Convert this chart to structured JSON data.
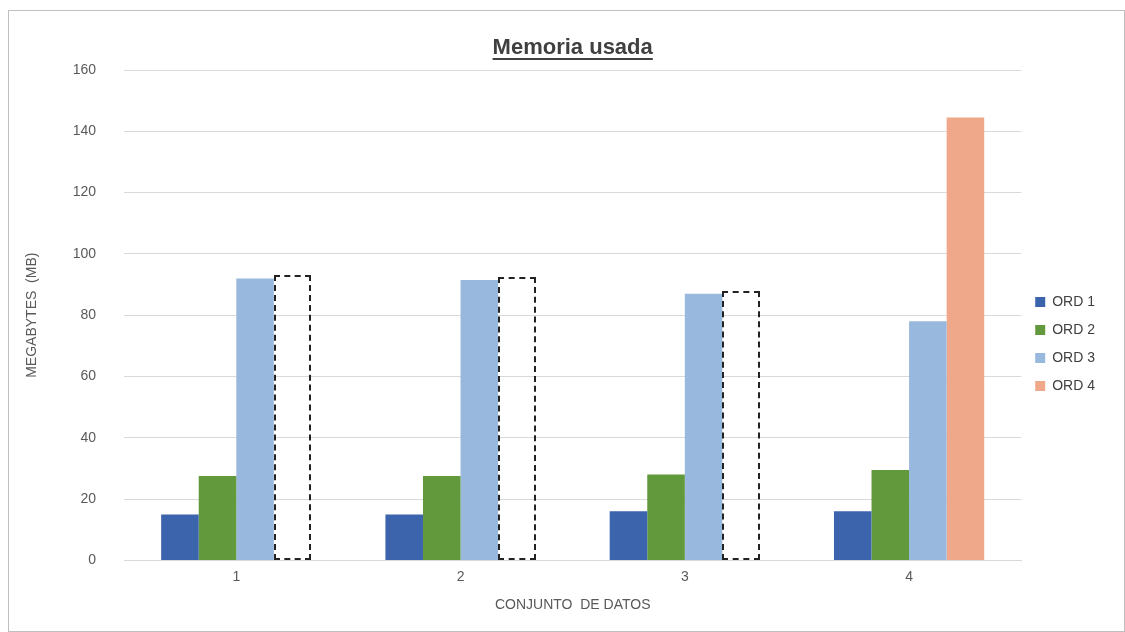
{
  "chart_data": {
    "type": "bar",
    "title": "Memoria usada",
    "xlabel": "CONJUNTO  DE DATOS",
    "ylabel": "MEGABYTES  (MB)",
    "categories": [
      "1",
      "2",
      "3",
      "4"
    ],
    "series": [
      {
        "name": "ORD 1",
        "color": "#3c64ac",
        "values": [
          15,
          15,
          16,
          16
        ]
      },
      {
        "name": "ORD 2",
        "color": "#63993d",
        "values": [
          27.5,
          27.5,
          28,
          29.5
        ]
      },
      {
        "name": "ORD 3",
        "color": "#98b8de",
        "values": [
          92,
          91.5,
          87,
          78
        ]
      },
      {
        "name": "ORD 4",
        "color": "#f0a88a",
        "values": [
          null,
          null,
          null,
          144.5
        ]
      }
    ],
    "ylim": [
      0,
      160
    ],
    "yticks": [
      0,
      20,
      40,
      60,
      80,
      100,
      120,
      140,
      160
    ],
    "grid": "y",
    "legend": "right"
  }
}
